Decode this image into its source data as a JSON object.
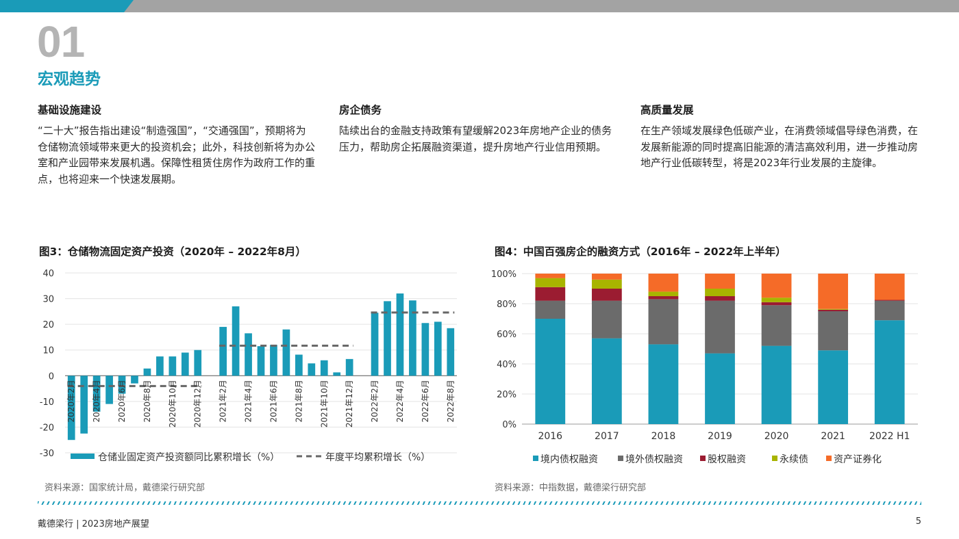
{
  "header": {
    "section_number": "01",
    "section_title": "宏观趋势"
  },
  "columns": [
    {
      "heading": "基础设施建设",
      "body": "“二十大”报告指出建设“制造强国”，“交通强国”，预期将为仓储物流领域带来更大的投资机会；此外，科技创新将为办公室和产业园带来发展机遇。保障性租赁住房作为政府工作的重点，也将迎来一个快速发展期。"
    },
    {
      "heading": "房企债务",
      "body": "陆续出台的金融支持政策有望缓解2023年房地产企业的债务压力，帮助房企拓展融资渠道，提升房地产行业信用预期。"
    },
    {
      "heading": "高质量发展",
      "body": "在生产领域发展绿色低碳产业，在消费领域倡导绿色消费，在发展新能源的同时提高旧能源的清洁高效利用，进一步推动房地产行业低碳转型，将是2023年行业发展的主旋律。"
    }
  ],
  "chart_data": [
    {
      "type": "bar",
      "title": "图3：仓储物流固定资产投资（2020年 – 2022年8月）",
      "source": "资料来源：国家统计局，戴德梁行研究部",
      "categories": [
        "2020年2月",
        "2020年3月",
        "2020年4月",
        "2020年5月",
        "2020年6月",
        "2020年7月",
        "2020年8月",
        "2020年9月",
        "2020年10月",
        "2020年11月",
        "2020年12月",
        "",
        "2021年2月",
        "2021年3月",
        "2021年4月",
        "2021年5月",
        "2021年6月",
        "2021年7月",
        "2021年8月",
        "2021年9月",
        "2021年10月",
        "2021年11月",
        "2021年12月",
        "",
        "2022年2月",
        "2022年3月",
        "2022年4月",
        "2022年5月",
        "2022年6月",
        "2022年7月",
        "2022年8月"
      ],
      "tick_labels": [
        "2020年2月",
        "2020年4月",
        "2020年6月",
        "2020年8月",
        "2020年10月",
        "2020年12月",
        "2021年2月",
        "2021年4月",
        "2021年6月",
        "2021年8月",
        "2021年10月",
        "2021年12月",
        "2022年2月",
        "2022年4月",
        "2022年6月",
        "2022年8月"
      ],
      "series": [
        {
          "name": "仓储业固定资产投资额同比累积增长（%）",
          "color": "#1a9bb8",
          "values": [
            -25,
            -22.5,
            -14,
            -11,
            -7,
            -3,
            2.8,
            7.5,
            7.5,
            9,
            10,
            null,
            19,
            27,
            16.5,
            11.5,
            12,
            18,
            8.2,
            4.8,
            6,
            1.3,
            6.5,
            null,
            24.5,
            29,
            32,
            29.3,
            20.5,
            21,
            18.5
          ]
        },
        {
          "name": "年度平均累积增长（%）",
          "color": "#666666",
          "style": "dashed",
          "values": [
            -4,
            -4,
            -4,
            -4,
            -4,
            -4,
            -4,
            -4,
            -4,
            -4,
            -4,
            null,
            11.7,
            11.7,
            11.7,
            11.7,
            11.7,
            11.7,
            11.7,
            11.7,
            11.7,
            11.7,
            11.7,
            null,
            24.6,
            24.6,
            24.6,
            24.6,
            24.6,
            24.6,
            24.6
          ]
        }
      ],
      "yticks": [
        40,
        30,
        20,
        10,
        0,
        -10,
        -20,
        -30
      ],
      "ylim": [
        -30,
        40
      ],
      "grid": true,
      "legend": "bottom"
    },
    {
      "type": "bar",
      "stacked": true,
      "title": "图4：中国百强房企的融资方式（2016年 – 2022年上半年）",
      "source": "资料来源：中指数据，戴德梁行研究部",
      "categories": [
        "2016",
        "2017",
        "2018",
        "2019",
        "2020",
        "2021",
        "2022 H1"
      ],
      "series": [
        {
          "name": "境内债权融资",
          "color": "#1a9bb8",
          "values": [
            70,
            57,
            53,
            47,
            52,
            49,
            69
          ]
        },
        {
          "name": "境外债权融资",
          "color": "#6b6b6b",
          "values": [
            12,
            25,
            30,
            35,
            27,
            26,
            13
          ]
        },
        {
          "name": "股权融资",
          "color": "#9b1c31",
          "values": [
            9,
            8,
            2,
            3,
            2,
            1,
            0.5
          ]
        },
        {
          "name": "永续债",
          "color": "#a8b400",
          "values": [
            6,
            6,
            3,
            5,
            3,
            0.5,
            0
          ]
        },
        {
          "name": "资产证券化",
          "color": "#f56b28",
          "values": [
            3,
            4,
            12,
            10,
            16,
            23.5,
            17.5
          ]
        }
      ],
      "yticks": [
        "100%",
        "80%",
        "60%",
        "40%",
        "20%",
        "0%"
      ],
      "ylim": [
        0,
        100
      ],
      "grid": true,
      "legend": "bottom"
    }
  ],
  "footer": {
    "left": "戴德梁行 | 2023房地产展望",
    "page": "5"
  }
}
